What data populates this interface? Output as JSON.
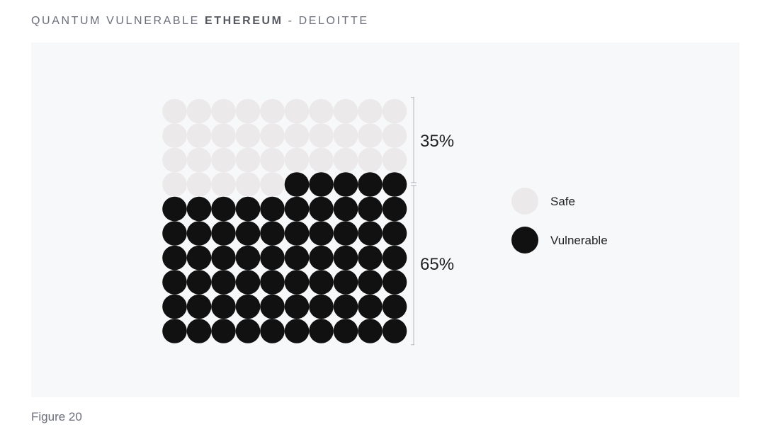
{
  "header": {
    "title_prefix": "QUANTUM VULNERABLE ",
    "title_strong": "ETHEREUM",
    "title_suffix": " - DELOITTE"
  },
  "caption": "Figure 20",
  "chart_data": {
    "type": "waffle",
    "total_units": 100,
    "grid": {
      "columns": 10,
      "rows": 10
    },
    "categories": [
      {
        "name": "Safe",
        "value": 35,
        "label": "35%",
        "color": "#ebe9ea"
      },
      {
        "name": "Vulnerable",
        "value": 65,
        "label": "65%",
        "color": "#111111"
      }
    ],
    "legend_position": "right"
  }
}
